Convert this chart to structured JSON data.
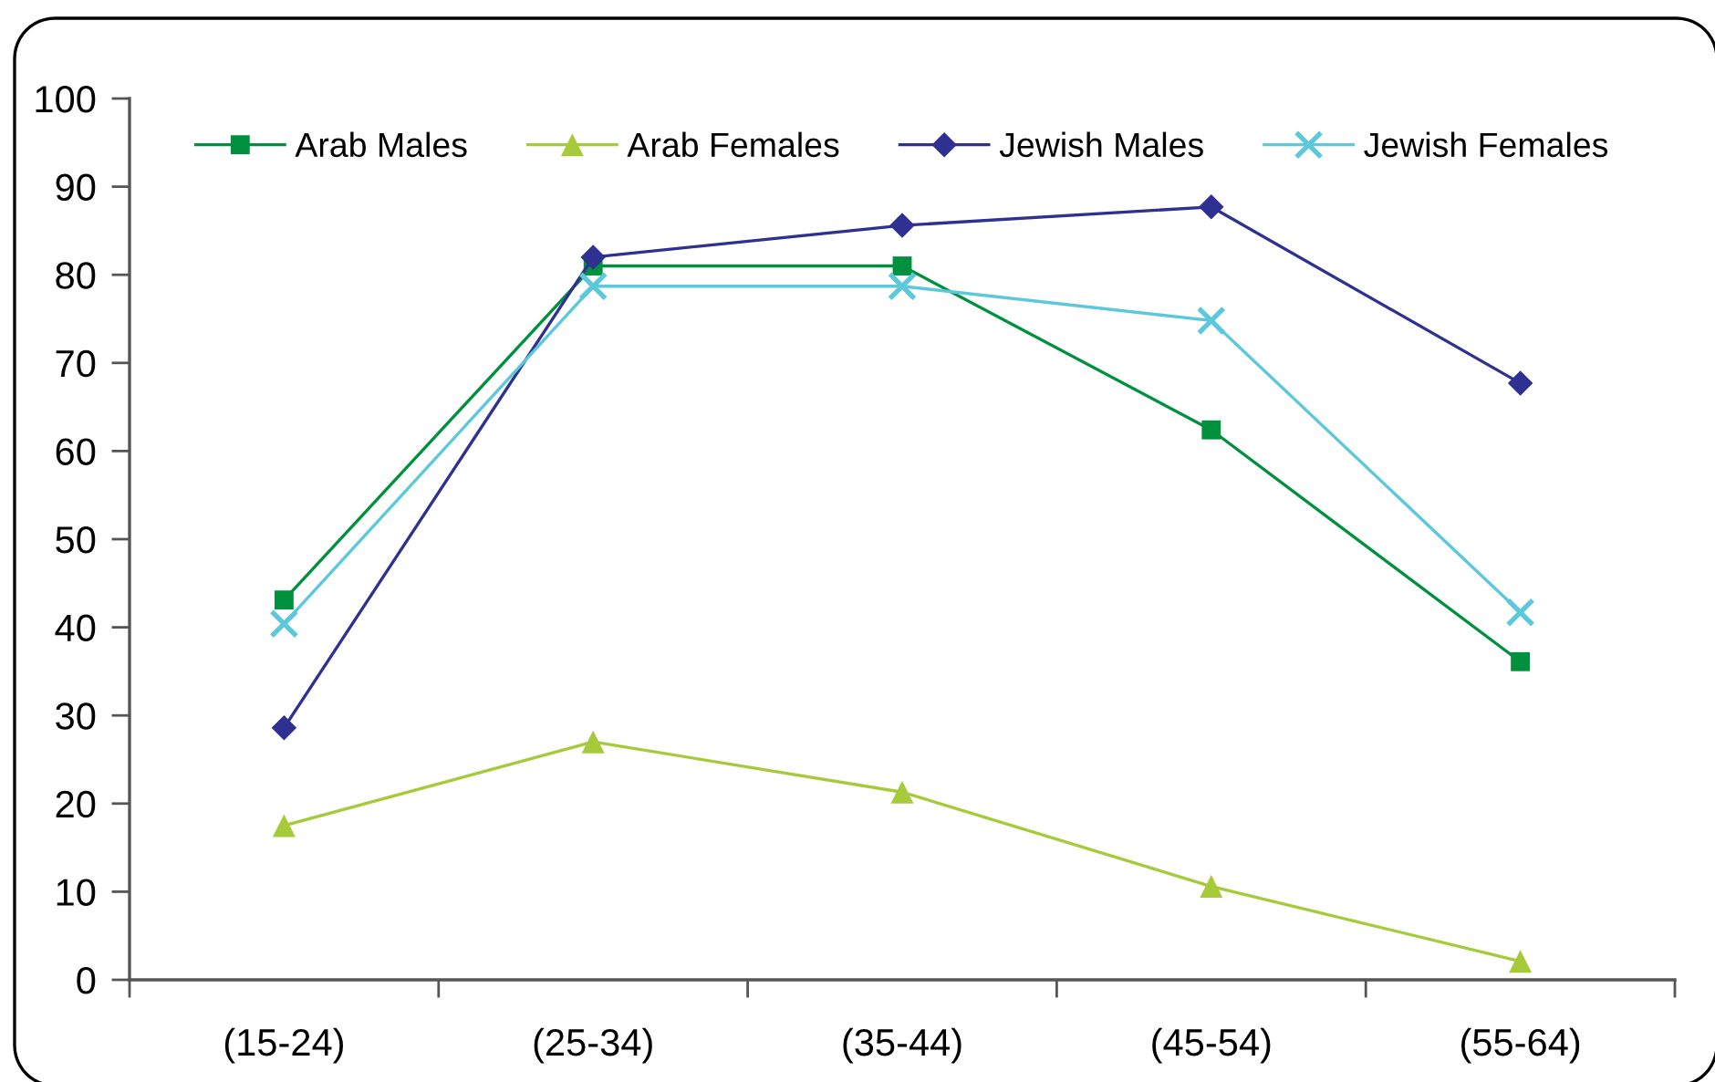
{
  "chart_data": {
    "type": "line",
    "categories": [
      "(15-24)",
      "(25-34)",
      "(35-44)",
      "(45-54)",
      "(55-64)"
    ],
    "series": [
      {
        "name": "Arab Males",
        "color": "#00913f",
        "marker": "square",
        "values": [
          43.1,
          81,
          81,
          62.4,
          36.1
        ]
      },
      {
        "name": "Arab Females",
        "color": "#a6ca3a",
        "marker": "triangle",
        "values": [
          17.5,
          27,
          21.3,
          10.6,
          2.1
        ]
      },
      {
        "name": "Jewish Males",
        "color": "#2e3192",
        "marker": "diamond",
        "values": [
          28.6,
          82,
          85.6,
          87.7,
          67.7
        ]
      },
      {
        "name": "Jewish Females",
        "color": "#5bc8dc",
        "marker": "cross",
        "values": [
          40.4,
          78.7,
          78.7,
          74.8,
          41.7
        ]
      }
    ],
    "ylim": [
      0,
      100
    ],
    "yticks": [
      0,
      10,
      20,
      30,
      40,
      50,
      60,
      70,
      80,
      90,
      100
    ],
    "legend": "top",
    "line_style": "solid"
  }
}
